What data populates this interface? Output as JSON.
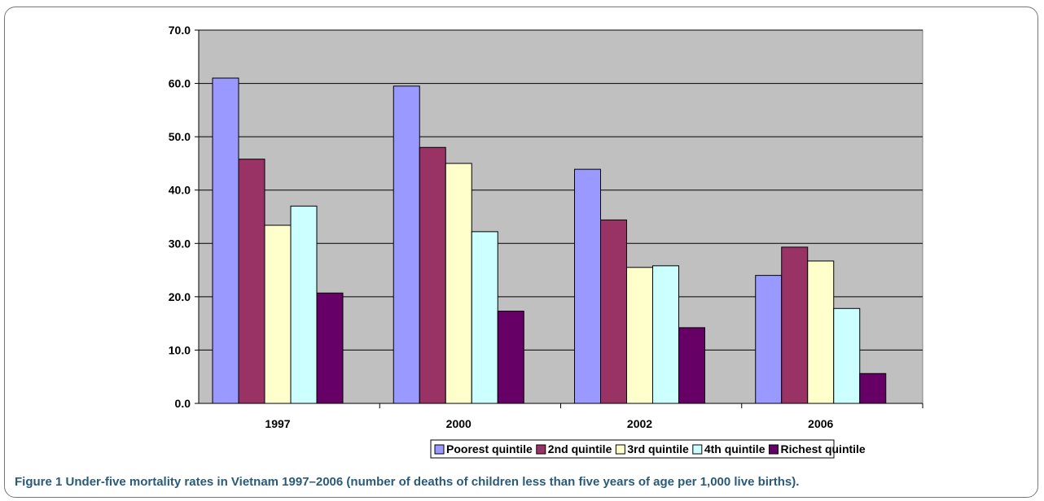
{
  "chart_data": {
    "type": "bar",
    "categories": [
      "1997",
      "2000",
      "2002",
      "2006"
    ],
    "series": [
      {
        "name": "Poorest quintile",
        "color": "#9999ff",
        "values": [
          61.0,
          59.5,
          43.9,
          24.0
        ]
      },
      {
        "name": "2nd quintile",
        "color": "#993366",
        "values": [
          45.8,
          48.0,
          34.4,
          29.3
        ]
      },
      {
        "name": "3rd quintile",
        "color": "#ffffcc",
        "values": [
          33.4,
          45.0,
          25.5,
          26.7
        ]
      },
      {
        "name": "4th quintile",
        "color": "#ccffff",
        "values": [
          37.0,
          32.2,
          25.8,
          17.8
        ]
      },
      {
        "name": "Richest quintile",
        "color": "#660066",
        "values": [
          20.7,
          17.3,
          14.2,
          5.6
        ]
      }
    ],
    "yticks": [
      "0.0",
      "10.0",
      "20.0",
      "30.0",
      "40.0",
      "50.0",
      "60.0",
      "70.0"
    ],
    "ylim": [
      0,
      70
    ],
    "grid": true,
    "plot_background": "#c0c0c0",
    "legend_position": "bottom"
  },
  "caption": {
    "label": "Figure 1",
    "text": "Under-five mortality rates in Vietnam 1997–2006 (number of deaths of children less than five years of age per 1,000 live births)."
  }
}
